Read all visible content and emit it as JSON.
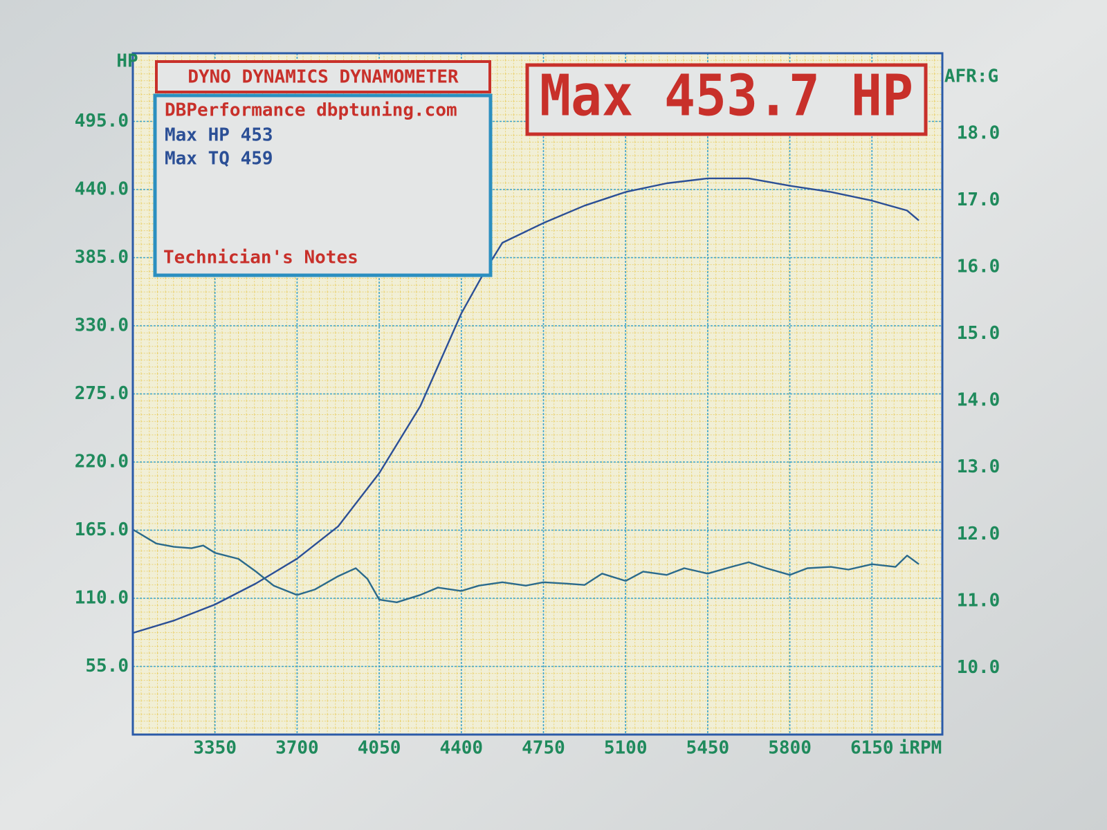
{
  "chart_data": {
    "type": "line",
    "title": "DYNO DYNAMICS DYNAMOMETER",
    "subtitle": "Max 453.7 HP",
    "annotations": [
      "DBPerformance dbptuning.com",
      "Max HP 453",
      "Max TQ 459",
      "Technician's Notes"
    ],
    "ylabel": "HP",
    "y2label": "AFR:G",
    "xlabel": "iRPM",
    "xlim": [
      3000,
      6450
    ],
    "xticks": [
      3350,
      3700,
      4050,
      4400,
      4750,
      5100,
      5450,
      5800,
      6150
    ],
    "ylim": [
      0,
      550
    ],
    "yticks": [
      {
        "value": 55,
        "label": "55.0"
      },
      {
        "value": 110,
        "label": "110.0"
      },
      {
        "value": 165,
        "label": "165.0"
      },
      {
        "value": 220,
        "label": "220.0"
      },
      {
        "value": 275,
        "label": "275.0"
      },
      {
        "value": 330,
        "label": "330.0"
      },
      {
        "value": 385,
        "label": "385.0"
      },
      {
        "value": 440,
        "label": "440.0"
      },
      {
        "value": 495,
        "label": "495.0"
      }
    ],
    "y2lim": [
      9,
      19.2
    ],
    "y2ticks": [
      {
        "value": 10,
        "label": "10.0"
      },
      {
        "value": 11,
        "label": "11.0"
      },
      {
        "value": 12,
        "label": "12.0"
      },
      {
        "value": 13,
        "label": "13.0"
      },
      {
        "value": 14,
        "label": "14.0"
      },
      {
        "value": 15,
        "label": "15.0"
      },
      {
        "value": 16,
        "label": "16.0"
      },
      {
        "value": 17,
        "label": "17.0"
      },
      {
        "value": 18,
        "label": "18.0"
      }
    ],
    "grid": true,
    "series": [
      {
        "color": "#2b4f96",
        "x": [
          3000,
          3175,
          3350,
          3525,
          3700,
          3875,
          4050,
          4225,
          4400,
          4500,
          4575,
          4750,
          4925,
          5100,
          5275,
          5450,
          5625,
          5800,
          5975,
          6150,
          6300,
          6350
        ],
        "values": [
          82,
          92,
          105,
          122,
          142,
          168,
          211,
          265,
          340,
          374,
          397,
          413,
          427,
          438,
          445,
          449,
          449,
          443,
          438,
          431,
          423,
          415
        ]
      },
      {
        "color": "#2a6a8c",
        "axis": "y2",
        "x": [
          3000,
          3100,
          3175,
          3250,
          3300,
          3350,
          3450,
          3525,
          3600,
          3700,
          3775,
          3875,
          3950,
          4000,
          4050,
          4125,
          4225,
          4300,
          4400,
          4475,
          4575,
          4675,
          4750,
          4850,
          4925,
          5000,
          5100,
          5175,
          5275,
          5350,
          5450,
          5550,
          5625,
          5700,
          5800,
          5875,
          5975,
          6050,
          6150,
          6250,
          6300,
          6350
        ],
        "values": [
          12.07,
          11.86,
          11.81,
          11.79,
          11.83,
          11.72,
          11.63,
          11.44,
          11.23,
          11.09,
          11.17,
          11.37,
          11.49,
          11.33,
          11.02,
          10.98,
          11.09,
          11.2,
          11.15,
          11.23,
          11.28,
          11.23,
          11.28,
          11.26,
          11.24,
          11.41,
          11.3,
          11.44,
          11.39,
          11.49,
          11.41,
          11.51,
          11.58,
          11.49,
          11.39,
          11.49,
          11.51,
          11.47,
          11.55,
          11.51,
          11.68,
          11.55
        ]
      }
    ]
  }
}
